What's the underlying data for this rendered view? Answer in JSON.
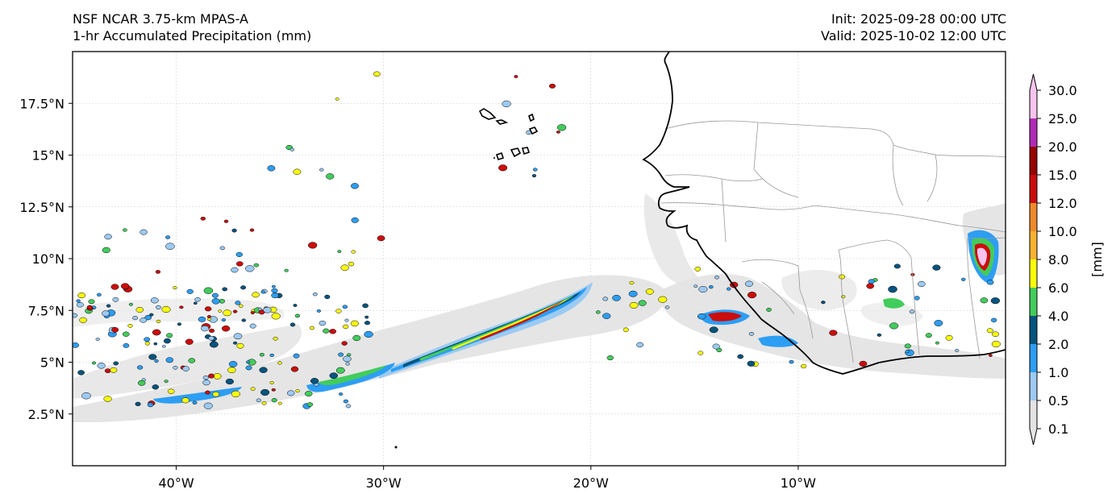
{
  "header": {
    "model": "NSF NCAR 3.75-km MPAS-A",
    "field": "1-hr Accumulated Precipitation (mm)",
    "init": "Init: 2025-09-28 00:00 UTC",
    "valid": "Valid: 2025-10-02 12:00 UTC"
  },
  "map": {
    "lon_range": [
      -45,
      0
    ],
    "lat_range": [
      0,
      20
    ],
    "lon_ticks": [
      {
        "value": -40,
        "label": "40°W"
      },
      {
        "value": -30,
        "label": "30°W"
      },
      {
        "value": -20,
        "label": "20°W"
      },
      {
        "value": -10,
        "label": "10°W"
      }
    ],
    "lat_ticks": [
      {
        "value": 2.5,
        "label": "2.5°N"
      },
      {
        "value": 5,
        "label": "5°N"
      },
      {
        "value": 7.5,
        "label": "7.5°N"
      },
      {
        "value": 10,
        "label": "10°N"
      },
      {
        "value": 12.5,
        "label": "12.5°N"
      },
      {
        "value": 15,
        "label": "15°N"
      },
      {
        "value": 17.5,
        "label": "17.5°N"
      }
    ],
    "gridlines": true
  },
  "colorbar": {
    "unit_label": "[mm]",
    "levels": [
      "0.1",
      "0.5",
      "1.0",
      "2.0",
      "4.0",
      "6.0",
      "8.0",
      "10.0",
      "12.0",
      "15.0",
      "20.0",
      "25.0",
      "30.0"
    ],
    "colors": [
      "#e4e4e4",
      "#9ccaf2",
      "#2d9ef4",
      "#05547e",
      "#42cc5c",
      "#fbfb0c",
      "#f7b22f",
      "#ee8a2c",
      "#cb0d0c",
      "#980400",
      "#b12bb6",
      "#f8c4ee"
    ],
    "extend": "both"
  }
}
